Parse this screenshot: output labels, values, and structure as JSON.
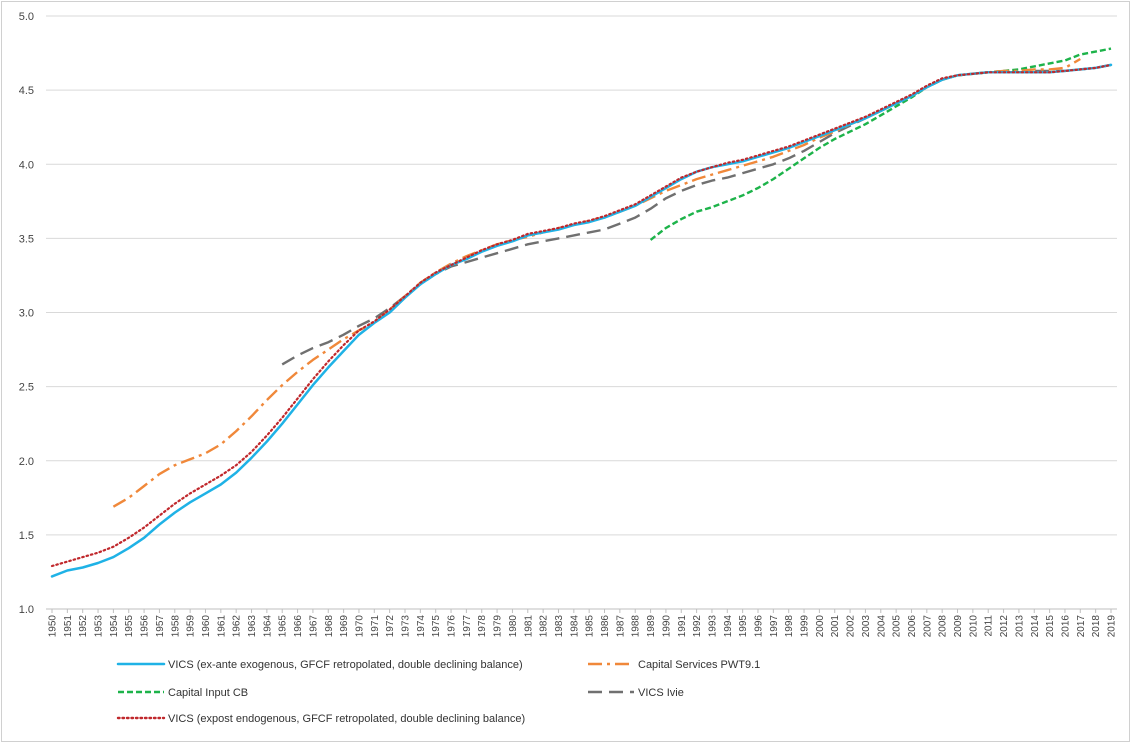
{
  "chart_data": {
    "type": "line",
    "title": "",
    "xlabel": "",
    "ylabel": "",
    "ylim": [
      1.0,
      5.0
    ],
    "yticks": [
      1.0,
      1.5,
      2.0,
      2.5,
      3.0,
      3.5,
      4.0,
      4.5,
      5.0
    ],
    "ytick_labels": [
      "1.0",
      "1.5",
      "2.0",
      "2.5",
      "3.0",
      "3.5",
      "4.0",
      "4.5",
      "5.0"
    ],
    "xlim": [
      1950,
      2019
    ],
    "grid": "horizontal",
    "legend_position": "bottom",
    "series": [
      {
        "name": "VICS (ex-ante exogenous, GFCF retropolated, double declining balance)",
        "color": "#1fb2e6",
        "style": "solid",
        "x": [
          1950,
          1951,
          1952,
          1953,
          1954,
          1955,
          1956,
          1957,
          1958,
          1959,
          1960,
          1961,
          1962,
          1963,
          1964,
          1965,
          1966,
          1967,
          1968,
          1969,
          1970,
          1971,
          1972,
          1973,
          1974,
          1975,
          1976,
          1977,
          1978,
          1979,
          1980,
          1981,
          1982,
          1983,
          1984,
          1985,
          1986,
          1987,
          1988,
          1989,
          1990,
          1991,
          1992,
          1993,
          1994,
          1995,
          1996,
          1997,
          1998,
          1999,
          2000,
          2001,
          2002,
          2003,
          2004,
          2005,
          2006,
          2007,
          2008,
          2009,
          2010,
          2011,
          2012,
          2013,
          2014,
          2015,
          2016,
          2017,
          2018,
          2019
        ],
        "y": [
          1.22,
          1.26,
          1.28,
          1.31,
          1.35,
          1.41,
          1.48,
          1.57,
          1.65,
          1.72,
          1.78,
          1.84,
          1.92,
          2.02,
          2.13,
          2.25,
          2.38,
          2.51,
          2.63,
          2.74,
          2.85,
          2.93,
          3.0,
          3.1,
          3.19,
          3.26,
          3.32,
          3.36,
          3.41,
          3.45,
          3.48,
          3.52,
          3.54,
          3.56,
          3.59,
          3.61,
          3.64,
          3.68,
          3.72,
          3.78,
          3.84,
          3.9,
          3.95,
          3.98,
          4.0,
          4.02,
          4.05,
          4.08,
          4.11,
          4.15,
          4.19,
          4.23,
          4.27,
          4.31,
          4.36,
          4.41,
          4.46,
          4.52,
          4.57,
          4.6,
          4.61,
          4.62,
          4.62,
          4.62,
          4.62,
          4.62,
          4.63,
          4.64,
          4.65,
          4.67
        ]
      },
      {
        "name": "Capital Services PWT9.1",
        "color": "#f0883a",
        "style": "dashdot",
        "x": [
          1954,
          1955,
          1956,
          1957,
          1958,
          1959,
          1960,
          1961,
          1962,
          1963,
          1964,
          1965,
          1966,
          1967,
          1968,
          1969,
          1970,
          1971,
          1972,
          1973,
          1974,
          1975,
          1976,
          1977,
          1978,
          1979,
          1980,
          1981,
          1982,
          1983,
          1984,
          1985,
          1986,
          1987,
          1988,
          1989,
          1990,
          1991,
          1992,
          1993,
          1994,
          1995,
          1996,
          1997,
          1998,
          1999,
          2000,
          2001,
          2002,
          2003,
          2004,
          2005,
          2006,
          2007,
          2008,
          2009,
          2010,
          2011,
          2012,
          2013,
          2014,
          2015,
          2016,
          2017
        ],
        "y": [
          1.69,
          1.75,
          1.83,
          1.91,
          1.97,
          2.01,
          2.05,
          2.11,
          2.2,
          2.3,
          2.41,
          2.51,
          2.6,
          2.68,
          2.75,
          2.82,
          2.88,
          2.93,
          3.02,
          3.11,
          3.2,
          3.27,
          3.33,
          3.38,
          3.42,
          3.46,
          3.49,
          3.51,
          3.54,
          3.57,
          3.59,
          3.62,
          3.64,
          3.68,
          3.72,
          3.77,
          3.82,
          3.86,
          3.9,
          3.93,
          3.96,
          3.99,
          4.02,
          4.05,
          4.09,
          4.13,
          4.18,
          4.22,
          4.27,
          4.31,
          4.36,
          4.41,
          4.46,
          4.52,
          4.57,
          4.6,
          4.61,
          4.62,
          4.63,
          4.63,
          4.64,
          4.64,
          4.65,
          4.71
        ]
      },
      {
        "name": "Capital Input CB",
        "color": "#1db34a",
        "style": "dashed",
        "x": [
          1989,
          1990,
          1991,
          1992,
          1993,
          1994,
          1995,
          1996,
          1997,
          1998,
          1999,
          2000,
          2001,
          2002,
          2003,
          2004,
          2005,
          2006,
          2007,
          2008,
          2009,
          2010,
          2011,
          2012,
          2013,
          2014,
          2015,
          2016,
          2017,
          2018,
          2019
        ],
        "y": [
          3.49,
          3.57,
          3.63,
          3.68,
          3.71,
          3.75,
          3.79,
          3.84,
          3.9,
          3.97,
          4.04,
          4.11,
          4.17,
          4.22,
          4.27,
          4.33,
          4.39,
          4.45,
          4.52,
          4.57,
          4.6,
          4.61,
          4.62,
          4.63,
          4.64,
          4.66,
          4.68,
          4.7,
          4.74,
          4.76,
          4.78
        ]
      },
      {
        "name": "VICS Ivie",
        "color": "#707070",
        "style": "longdash",
        "x": [
          1965,
          1966,
          1967,
          1968,
          1969,
          1970,
          1971,
          1972,
          1973,
          1974,
          1975,
          1976,
          1977,
          1978,
          1979,
          1980,
          1981,
          1982,
          1983,
          1984,
          1985,
          1986,
          1987,
          1988,
          1989,
          1990,
          1991,
          1992,
          1993,
          1994,
          1995,
          1996,
          1997,
          1998,
          1999,
          2000,
          2001,
          2002,
          2003,
          2004,
          2005,
          2006,
          2007,
          2008,
          2009,
          2010,
          2011,
          2012,
          2013,
          2014,
          2015,
          2016,
          2017,
          2018,
          2019
        ],
        "y": [
          2.65,
          2.71,
          2.76,
          2.8,
          2.85,
          2.91,
          2.96,
          3.03,
          3.11,
          3.19,
          3.26,
          3.31,
          3.34,
          3.37,
          3.4,
          3.43,
          3.46,
          3.48,
          3.5,
          3.52,
          3.54,
          3.56,
          3.6,
          3.64,
          3.7,
          3.77,
          3.82,
          3.86,
          3.89,
          3.91,
          3.94,
          3.97,
          4.0,
          4.04,
          4.09,
          4.15,
          4.21,
          4.26,
          4.31,
          4.36,
          4.41,
          4.46,
          4.52,
          4.57,
          4.6,
          4.61,
          4.62,
          4.62,
          4.62,
          4.63,
          4.63,
          4.63,
          4.64,
          4.65,
          4.67
        ]
      },
      {
        "name": "VICS (expost endogenous, GFCF retropolated, double declining balance)",
        "color": "#c0282c",
        "style": "dotted",
        "x": [
          1950,
          1951,
          1952,
          1953,
          1954,
          1955,
          1956,
          1957,
          1958,
          1959,
          1960,
          1961,
          1962,
          1963,
          1964,
          1965,
          1966,
          1967,
          1968,
          1969,
          1970,
          1971,
          1972,
          1973,
          1974,
          1975,
          1976,
          1977,
          1978,
          1979,
          1980,
          1981,
          1982,
          1983,
          1984,
          1985,
          1986,
          1987,
          1988,
          1989,
          1990,
          1991,
          1992,
          1993,
          1994,
          1995,
          1996,
          1997,
          1998,
          1999,
          2000,
          2001,
          2002,
          2003,
          2004,
          2005,
          2006,
          2007,
          2008,
          2009,
          2010,
          2011,
          2012,
          2013,
          2014,
          2015,
          2016,
          2017,
          2018,
          2019
        ],
        "y": [
          1.29,
          1.32,
          1.35,
          1.38,
          1.42,
          1.48,
          1.55,
          1.63,
          1.71,
          1.78,
          1.84,
          1.9,
          1.97,
          2.06,
          2.17,
          2.29,
          2.42,
          2.55,
          2.67,
          2.78,
          2.88,
          2.94,
          3.02,
          3.11,
          3.2,
          3.27,
          3.32,
          3.37,
          3.42,
          3.46,
          3.49,
          3.53,
          3.55,
          3.57,
          3.6,
          3.62,
          3.65,
          3.69,
          3.73,
          3.79,
          3.85,
          3.91,
          3.95,
          3.98,
          4.01,
          4.03,
          4.06,
          4.09,
          4.12,
          4.16,
          4.2,
          4.24,
          4.28,
          4.32,
          4.37,
          4.42,
          4.47,
          4.53,
          4.58,
          4.6,
          4.61,
          4.62,
          4.62,
          4.62,
          4.62,
          4.62,
          4.63,
          4.64,
          4.65,
          4.67
        ]
      }
    ]
  }
}
